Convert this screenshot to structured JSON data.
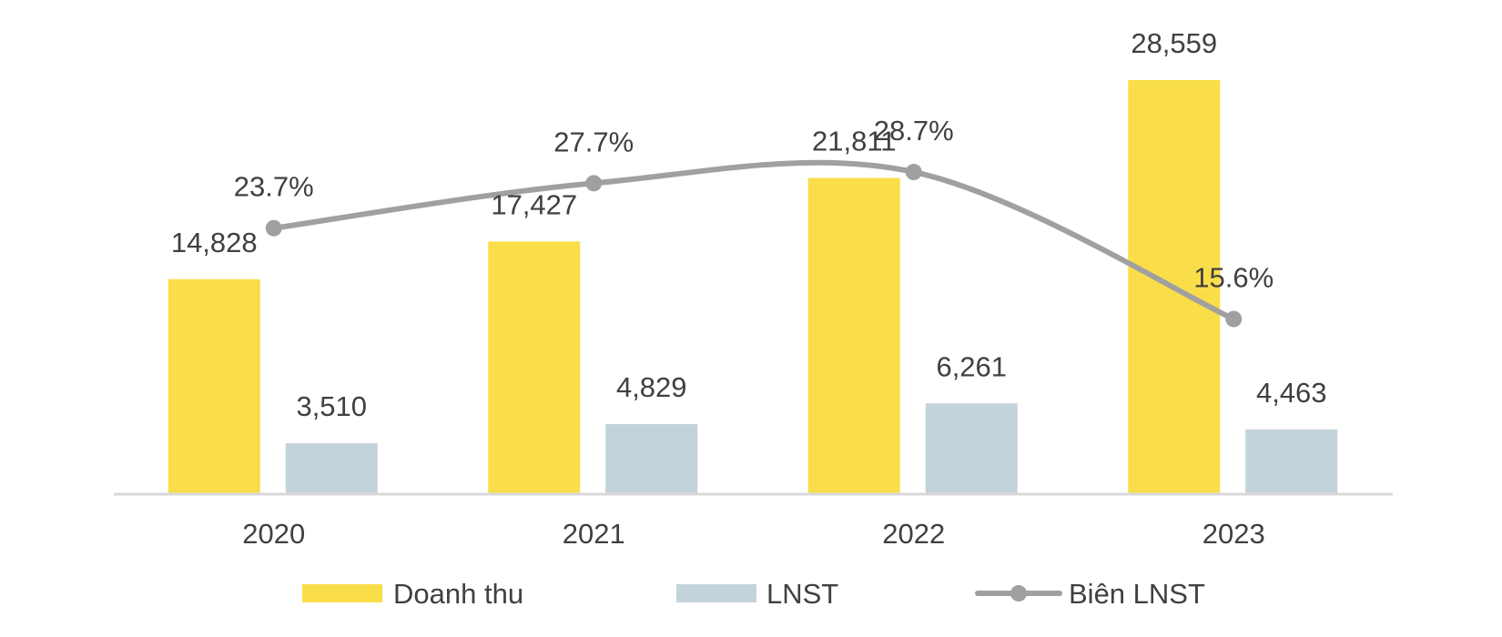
{
  "chart_data": {
    "type": "bar",
    "title": "",
    "xlabel": "",
    "ylabel": "",
    "categories": [
      "2020",
      "2021",
      "2022",
      "2023"
    ],
    "series": [
      {
        "name": "Doanh thu",
        "type": "bar",
        "axis": "primary",
        "color": "#F9DE49",
        "values": [
          14828,
          17427,
          21811,
          28559
        ],
        "labels": [
          "14,828",
          "17,427",
          "21,811",
          "28,559"
        ]
      },
      {
        "name": "LNST",
        "type": "bar",
        "axis": "primary",
        "color": "#C3D3DA",
        "values": [
          3510,
          4829,
          6261,
          4463
        ],
        "labels": [
          "3,510",
          "4,829",
          "6,261",
          "4,463"
        ]
      },
      {
        "name": "Biên LNST",
        "type": "line",
        "axis": "secondary",
        "color": "#A0A0A0",
        "values": [
          23.7,
          27.7,
          28.7,
          15.6
        ],
        "labels": [
          "23.7%",
          "27.7%",
          "28.7%",
          "15.6%"
        ]
      }
    ],
    "ylim": [
      0,
      30000
    ],
    "y2lim": [
      0,
      60
    ],
    "grid": false,
    "legend": "bottom-center"
  }
}
